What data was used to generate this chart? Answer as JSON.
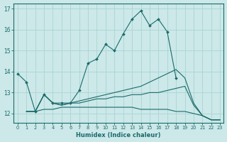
{
  "xlabel": "Humidex (Indice chaleur)",
  "bg_color": "#cce8e8",
  "grid_color": "#aad4d4",
  "line_color": "#1a6b6b",
  "xlim_min": -0.5,
  "xlim_max": 23.4,
  "ylim_min": 11.55,
  "ylim_max": 17.25,
  "yticks": [
    12,
    13,
    14,
    15,
    16,
    17
  ],
  "xticks": [
    0,
    1,
    2,
    3,
    4,
    5,
    6,
    7,
    8,
    9,
    10,
    11,
    12,
    13,
    14,
    15,
    16,
    17,
    18,
    19,
    20,
    21,
    22,
    23
  ],
  "lines": [
    {
      "x": [
        0,
        1,
        2,
        3,
        4,
        5,
        6,
        7,
        8,
        9,
        10,
        11,
        12,
        13,
        14,
        15,
        16,
        17,
        18
      ],
      "y": [
        13.9,
        13.5,
        12.1,
        12.9,
        12.5,
        12.5,
        12.5,
        13.1,
        14.4,
        14.6,
        15.3,
        15.0,
        15.8,
        16.5,
        16.9,
        16.2,
        16.5,
        15.9,
        13.7
      ],
      "marker": true
    },
    {
      "x": [
        1,
        2,
        3,
        4,
        5,
        6,
        7,
        8,
        9,
        10,
        11,
        12,
        13,
        14,
        15,
        16,
        17,
        18,
        19,
        20,
        21,
        22,
        23
      ],
      "y": [
        12.1,
        12.1,
        12.9,
        12.5,
        12.4,
        12.5,
        12.6,
        12.7,
        12.8,
        12.9,
        13.0,
        13.1,
        13.2,
        13.3,
        13.5,
        13.7,
        13.9,
        14.1,
        13.7,
        12.5,
        11.9,
        11.7,
        11.7
      ],
      "marker": false
    },
    {
      "x": [
        1,
        2,
        3,
        4,
        5,
        6,
        7,
        8,
        9,
        10,
        11,
        12,
        13,
        14,
        15,
        16,
        17,
        18,
        19,
        20,
        21,
        22,
        23
      ],
      "y": [
        12.1,
        12.1,
        12.9,
        12.5,
        12.4,
        12.5,
        12.5,
        12.6,
        12.7,
        12.7,
        12.8,
        12.8,
        12.9,
        12.9,
        13.0,
        13.0,
        13.1,
        13.2,
        13.3,
        12.4,
        11.9,
        11.7,
        11.7
      ],
      "marker": false
    },
    {
      "x": [
        1,
        2,
        3,
        4,
        5,
        6,
        7,
        8,
        9,
        10,
        11,
        12,
        13,
        14,
        15,
        16,
        17,
        18,
        19,
        20,
        21,
        22,
        23
      ],
      "y": [
        12.1,
        12.1,
        12.2,
        12.2,
        12.3,
        12.3,
        12.3,
        12.3,
        12.3,
        12.3,
        12.3,
        12.3,
        12.3,
        12.2,
        12.2,
        12.2,
        12.2,
        12.1,
        12.1,
        12.0,
        11.9,
        11.7,
        11.7
      ],
      "marker": false
    }
  ]
}
